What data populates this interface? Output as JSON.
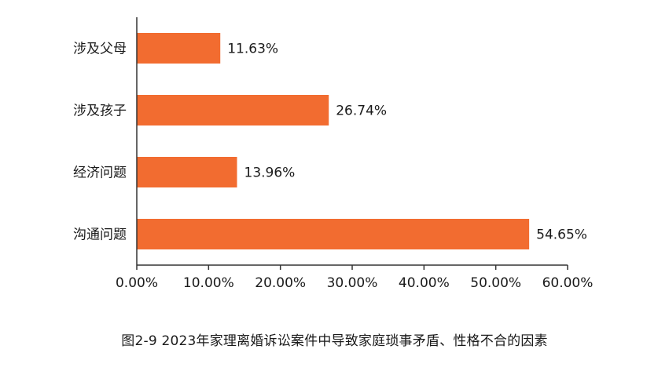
{
  "caption": "图2-9  2023年家理离婚诉讼案件中导致家庭琐事矛盾、性格不合的因素",
  "colors": {
    "bar": "#f26c30",
    "axis": "#333333",
    "text": "#1a1a1a"
  },
  "chart_data": {
    "type": "bar",
    "orientation": "horizontal",
    "categories": [
      "涉及父母",
      "涉及孩子",
      "经济问题",
      "沟通问题"
    ],
    "values": [
      11.63,
      26.74,
      13.96,
      54.65
    ],
    "data_labels": [
      "11.63%",
      "26.74%",
      "13.96%",
      "54.65%"
    ],
    "xlim": [
      0,
      60
    ],
    "xticks": [
      0,
      10,
      20,
      30,
      40,
      50,
      60
    ],
    "xtick_labels": [
      "0.00%",
      "10.00%",
      "20.00%",
      "30.00%",
      "40.00%",
      "50.00%",
      "60.00%"
    ],
    "grid": false,
    "legend": "none"
  }
}
